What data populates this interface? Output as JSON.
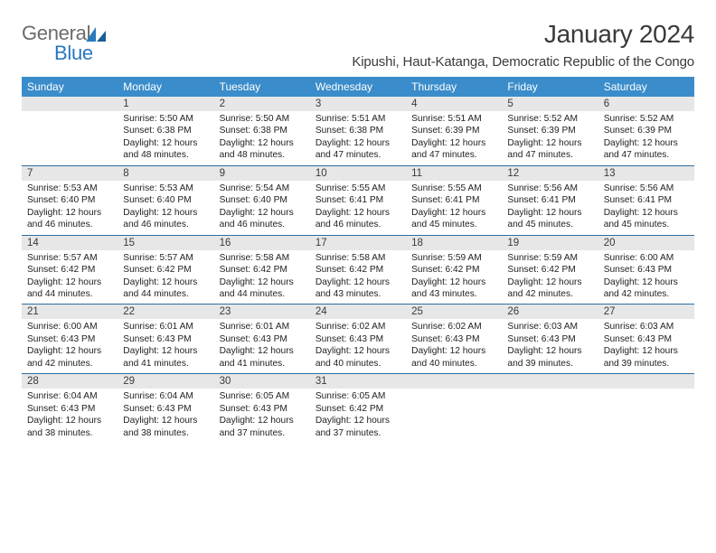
{
  "logo": {
    "word1": "General",
    "word2": "Blue"
  },
  "title": "January 2024",
  "location": "Kipushi, Haut-Katanga, Democratic Republic of the Congo",
  "colors": {
    "header_bg": "#3a8dca",
    "header_text": "#ffffff",
    "rule": "#2e6fa3",
    "daynum_bg": "#e7e7e7",
    "body_text": "#222222",
    "title_text": "#3a3a3a",
    "logo_gray": "#6b6b6b",
    "logo_blue": "#2a78bd"
  },
  "dow": [
    "Sunday",
    "Monday",
    "Tuesday",
    "Wednesday",
    "Thursday",
    "Friday",
    "Saturday"
  ],
  "weeks": [
    [
      null,
      {
        "n": "1",
        "sr": "5:50 AM",
        "ss": "6:38 PM",
        "dl": "12 hours and 48 minutes."
      },
      {
        "n": "2",
        "sr": "5:50 AM",
        "ss": "6:38 PM",
        "dl": "12 hours and 48 minutes."
      },
      {
        "n": "3",
        "sr": "5:51 AM",
        "ss": "6:38 PM",
        "dl": "12 hours and 47 minutes."
      },
      {
        "n": "4",
        "sr": "5:51 AM",
        "ss": "6:39 PM",
        "dl": "12 hours and 47 minutes."
      },
      {
        "n": "5",
        "sr": "5:52 AM",
        "ss": "6:39 PM",
        "dl": "12 hours and 47 minutes."
      },
      {
        "n": "6",
        "sr": "5:52 AM",
        "ss": "6:39 PM",
        "dl": "12 hours and 47 minutes."
      }
    ],
    [
      {
        "n": "7",
        "sr": "5:53 AM",
        "ss": "6:40 PM",
        "dl": "12 hours and 46 minutes."
      },
      {
        "n": "8",
        "sr": "5:53 AM",
        "ss": "6:40 PM",
        "dl": "12 hours and 46 minutes."
      },
      {
        "n": "9",
        "sr": "5:54 AM",
        "ss": "6:40 PM",
        "dl": "12 hours and 46 minutes."
      },
      {
        "n": "10",
        "sr": "5:55 AM",
        "ss": "6:41 PM",
        "dl": "12 hours and 46 minutes."
      },
      {
        "n": "11",
        "sr": "5:55 AM",
        "ss": "6:41 PM",
        "dl": "12 hours and 45 minutes."
      },
      {
        "n": "12",
        "sr": "5:56 AM",
        "ss": "6:41 PM",
        "dl": "12 hours and 45 minutes."
      },
      {
        "n": "13",
        "sr": "5:56 AM",
        "ss": "6:41 PM",
        "dl": "12 hours and 45 minutes."
      }
    ],
    [
      {
        "n": "14",
        "sr": "5:57 AM",
        "ss": "6:42 PM",
        "dl": "12 hours and 44 minutes."
      },
      {
        "n": "15",
        "sr": "5:57 AM",
        "ss": "6:42 PM",
        "dl": "12 hours and 44 minutes."
      },
      {
        "n": "16",
        "sr": "5:58 AM",
        "ss": "6:42 PM",
        "dl": "12 hours and 44 minutes."
      },
      {
        "n": "17",
        "sr": "5:58 AM",
        "ss": "6:42 PM",
        "dl": "12 hours and 43 minutes."
      },
      {
        "n": "18",
        "sr": "5:59 AM",
        "ss": "6:42 PM",
        "dl": "12 hours and 43 minutes."
      },
      {
        "n": "19",
        "sr": "5:59 AM",
        "ss": "6:42 PM",
        "dl": "12 hours and 42 minutes."
      },
      {
        "n": "20",
        "sr": "6:00 AM",
        "ss": "6:43 PM",
        "dl": "12 hours and 42 minutes."
      }
    ],
    [
      {
        "n": "21",
        "sr": "6:00 AM",
        "ss": "6:43 PM",
        "dl": "12 hours and 42 minutes."
      },
      {
        "n": "22",
        "sr": "6:01 AM",
        "ss": "6:43 PM",
        "dl": "12 hours and 41 minutes."
      },
      {
        "n": "23",
        "sr": "6:01 AM",
        "ss": "6:43 PM",
        "dl": "12 hours and 41 minutes."
      },
      {
        "n": "24",
        "sr": "6:02 AM",
        "ss": "6:43 PM",
        "dl": "12 hours and 40 minutes."
      },
      {
        "n": "25",
        "sr": "6:02 AM",
        "ss": "6:43 PM",
        "dl": "12 hours and 40 minutes."
      },
      {
        "n": "26",
        "sr": "6:03 AM",
        "ss": "6:43 PM",
        "dl": "12 hours and 39 minutes."
      },
      {
        "n": "27",
        "sr": "6:03 AM",
        "ss": "6:43 PM",
        "dl": "12 hours and 39 minutes."
      }
    ],
    [
      {
        "n": "28",
        "sr": "6:04 AM",
        "ss": "6:43 PM",
        "dl": "12 hours and 38 minutes."
      },
      {
        "n": "29",
        "sr": "6:04 AM",
        "ss": "6:43 PM",
        "dl": "12 hours and 38 minutes."
      },
      {
        "n": "30",
        "sr": "6:05 AM",
        "ss": "6:43 PM",
        "dl": "12 hours and 37 minutes."
      },
      {
        "n": "31",
        "sr": "6:05 AM",
        "ss": "6:42 PM",
        "dl": "12 hours and 37 minutes."
      },
      null,
      null,
      null
    ]
  ],
  "labels": {
    "sunrise": "Sunrise:",
    "sunset": "Sunset:",
    "daylight": "Daylight:"
  }
}
